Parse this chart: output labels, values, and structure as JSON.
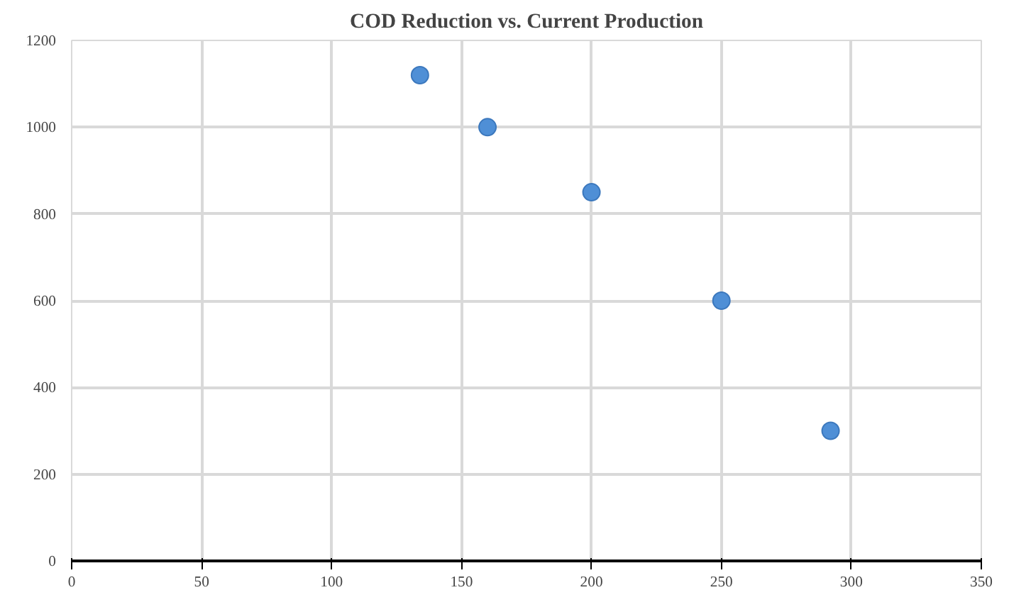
{
  "chart_data": {
    "type": "scatter",
    "title": "COD Reduction vs. Current Production",
    "x": [
      134,
      160,
      200,
      250,
      292
    ],
    "series": [
      {
        "color": "#4f8fd6",
        "values": [
          1120,
          1000,
          850,
          600,
          300
        ]
      }
    ],
    "xlim": [
      0,
      350
    ],
    "xticks": [
      0,
      50,
      100,
      150,
      200,
      250,
      300,
      350
    ],
    "ylim": [
      0,
      1200
    ],
    "yticks": [
      0,
      200,
      400,
      600,
      800,
      1000,
      1200
    ],
    "grid": true,
    "marker": "circle"
  }
}
